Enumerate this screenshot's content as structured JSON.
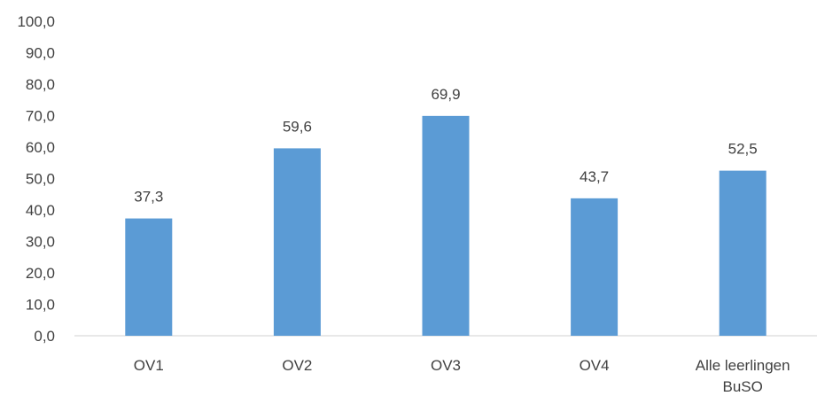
{
  "chart_data": {
    "type": "bar",
    "title": "",
    "xlabel": "",
    "ylabel": "",
    "categories": [
      "OV1",
      "OV2",
      "OV3",
      "OV4",
      "Alle leerlingen BuSO"
    ],
    "category_lines": [
      [
        "OV1"
      ],
      [
        "OV2"
      ],
      [
        "OV3"
      ],
      [
        "OV4"
      ],
      [
        "Alle leerlingen",
        "BuSO"
      ]
    ],
    "values": [
      37.3,
      59.6,
      69.9,
      43.7,
      52.5
    ],
    "value_labels": [
      "37,3",
      "59,6",
      "69,9",
      "43,7",
      "52,5"
    ],
    "ylim": [
      0,
      100
    ],
    "yticks": [
      0,
      10,
      20,
      30,
      40,
      50,
      60,
      70,
      80,
      90,
      100
    ],
    "ytick_labels": [
      "0,0",
      "10,0",
      "20,0",
      "30,0",
      "40,0",
      "50,0",
      "60,0",
      "70,0",
      "80,0",
      "90,0",
      "100,0"
    ],
    "grid": false,
    "legend": "none",
    "bar_color": "#5b9bd5"
  }
}
